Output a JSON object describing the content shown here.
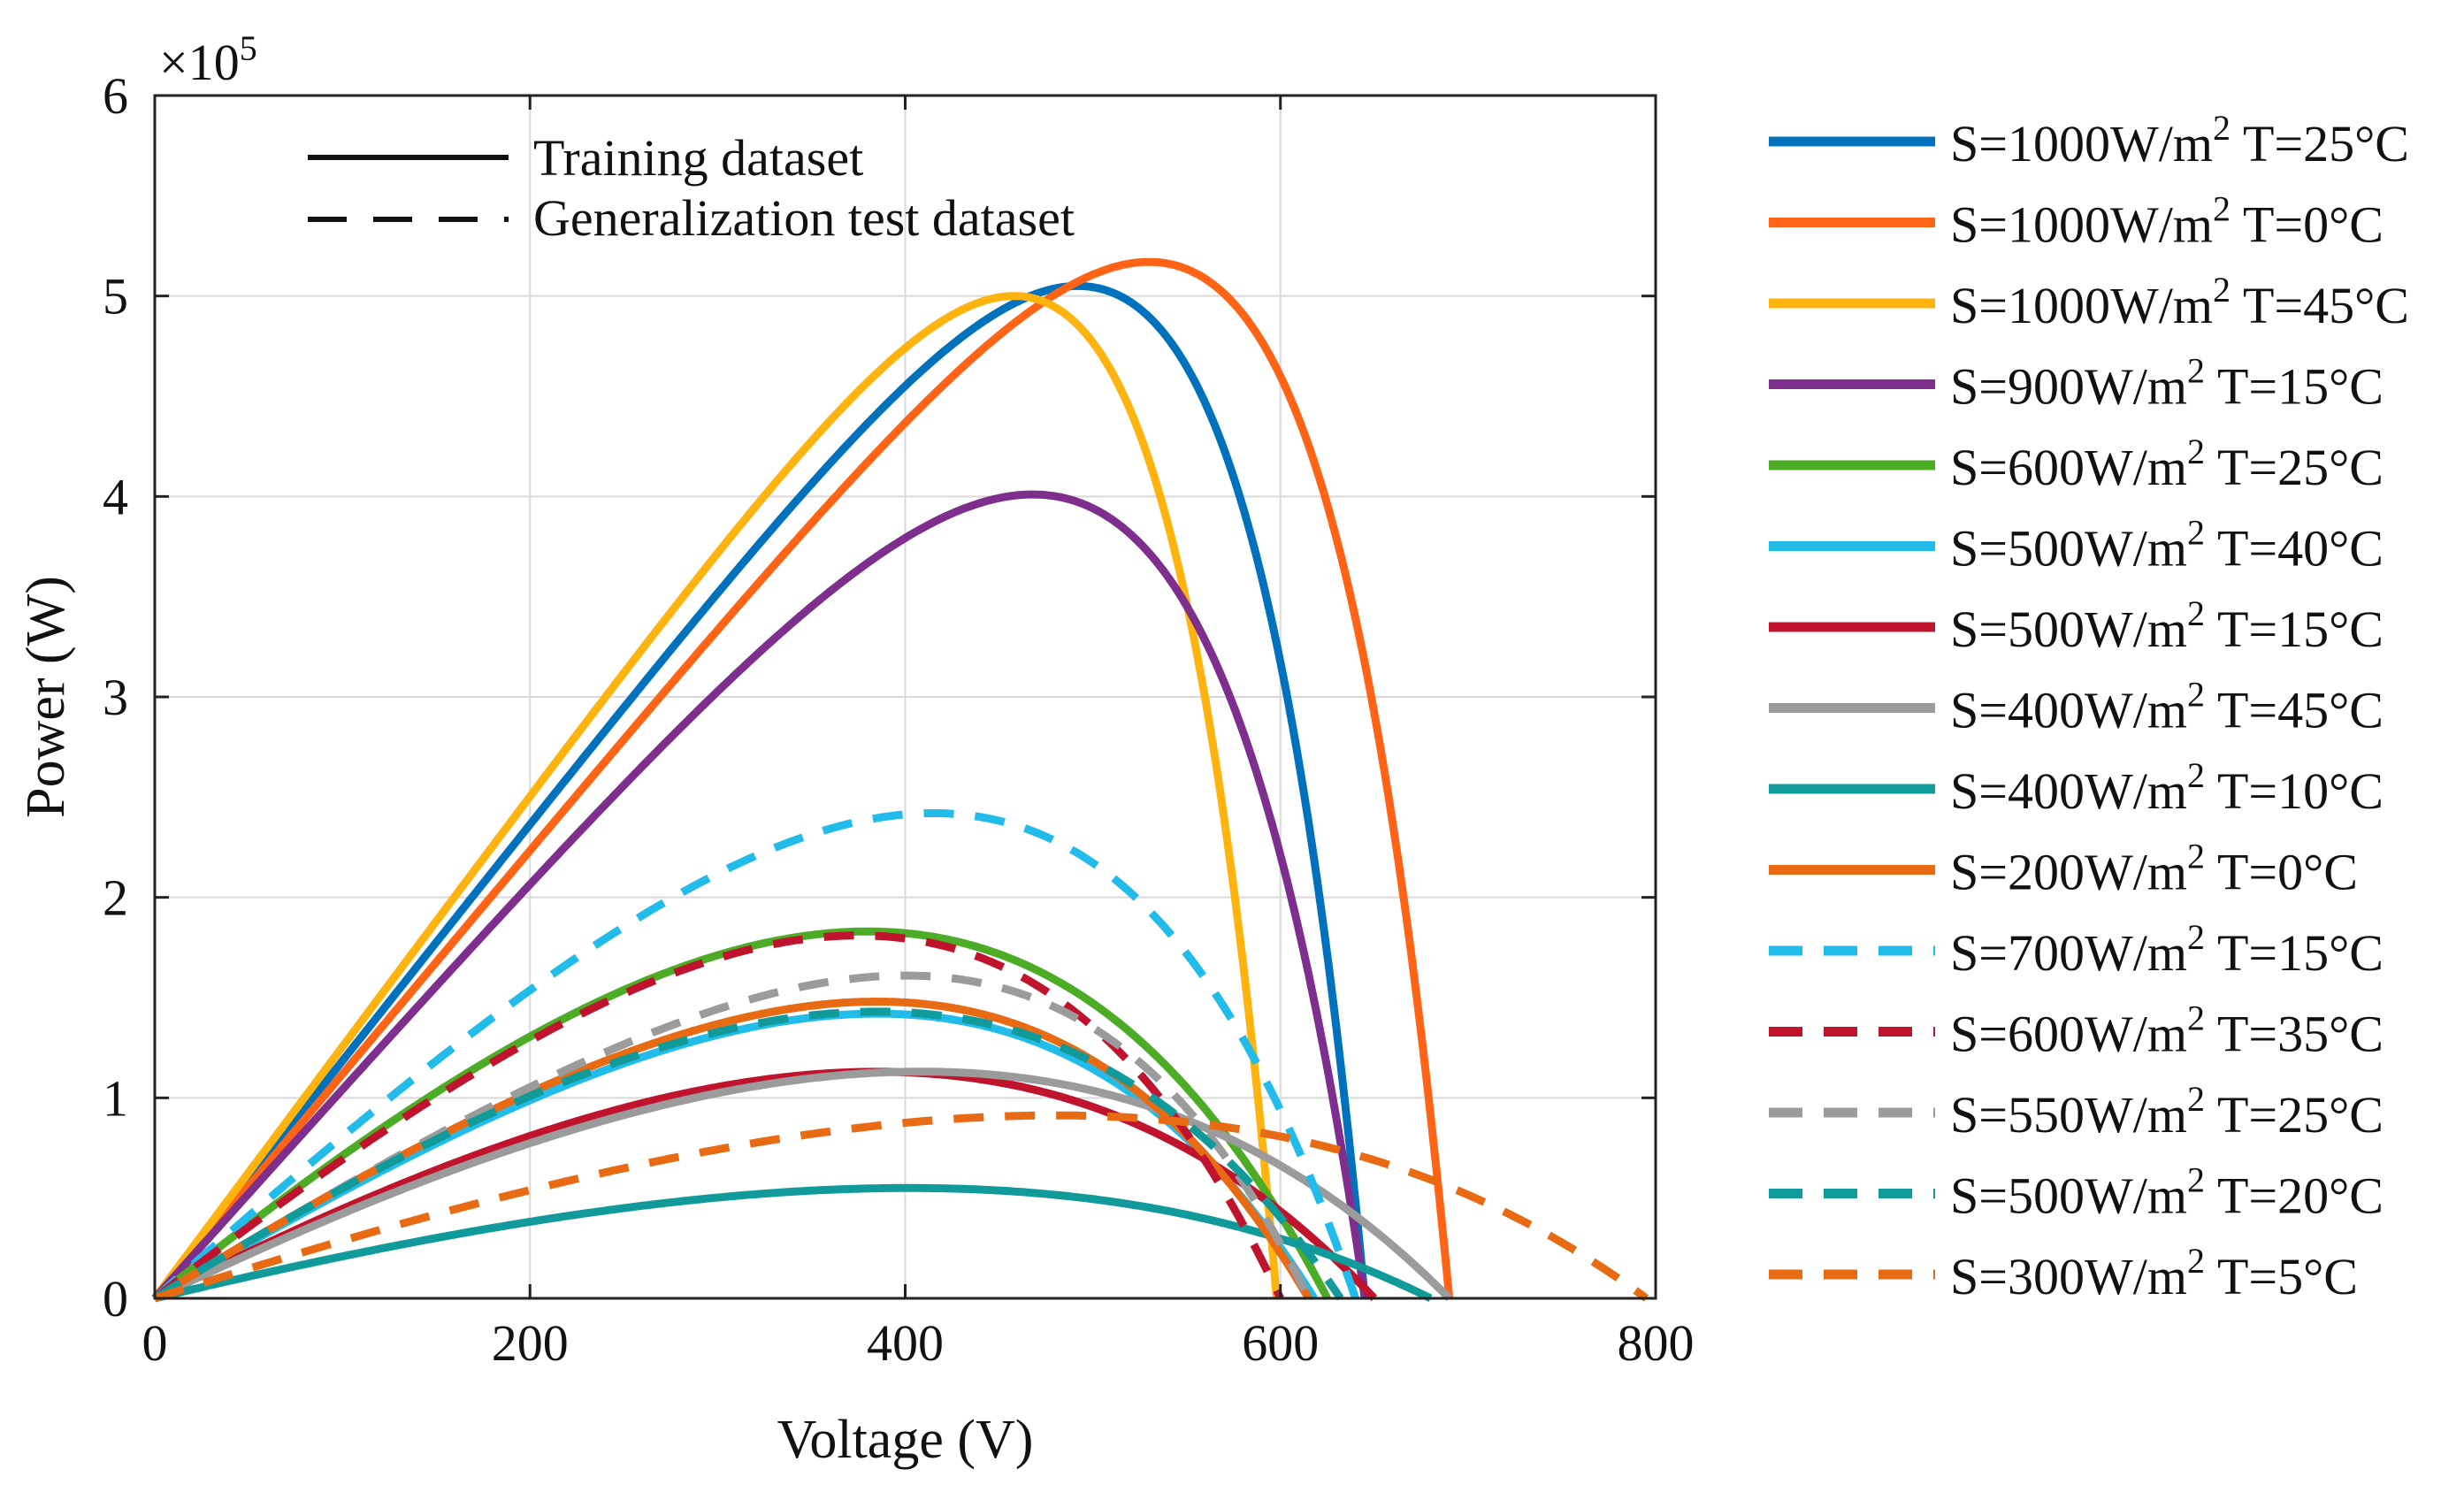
{
  "chart_data": {
    "type": "line",
    "xlabel": "Voltage (V)",
    "ylabel": "Power (W)",
    "xlim": [
      0,
      800
    ],
    "ylim": [
      0,
      6
    ],
    "y_exponent_label": "×10",
    "y_exponent_power": "5",
    "xticks": [
      "0",
      "200",
      "400",
      "600",
      "800"
    ],
    "yticks": [
      "0",
      "1",
      "2",
      "3",
      "4",
      "5",
      "6"
    ],
    "grid": true,
    "style_legend": {
      "position": "top-left",
      "items": [
        {
          "label": "Training dataset",
          "style": "solid"
        },
        {
          "label": "Generalization test dataset",
          "style": "dashed"
        }
      ]
    },
    "legend_position": "outside-right",
    "series": [
      {
        "id": "s1000_25",
        "S": "S=1000W/m",
        "T": "T=25°C",
        "sup": "2",
        "color": "#0072BD",
        "dashed": false,
        "vmax": 645,
        "vmp": 492,
        "pmax": 5.05
      },
      {
        "id": "s1000_0",
        "S": "S=1000W/m",
        "T": "T=0°C",
        "sup": "2",
        "color": "#FF6316",
        "dashed": false,
        "vmax": 690,
        "vmp": 530,
        "pmax": 5.17
      },
      {
        "id": "s1000_45",
        "S": "S=1000W/m",
        "T": "T=45°C",
        "sup": "2",
        "color": "#FFB30F",
        "dashed": false,
        "vmax": 598,
        "vmp": 458,
        "pmax": 5.0
      },
      {
        "id": "s900_15",
        "S": "S=900W/m",
        "T": "T=15°C",
        "sup": "2",
        "color": "#7E2F8E",
        "dashed": false,
        "vmax": 645,
        "vmp": 468,
        "pmax": 4.01
      },
      {
        "id": "s600_25",
        "S": "S=600W/m",
        "T": "T=25°C",
        "sup": "2",
        "color": "#4DAC26",
        "dashed": false,
        "vmax": 625,
        "vmp": 380,
        "pmax": 1.83
      },
      {
        "id": "s500_40",
        "S": "S=500W/m",
        "T": "T=40°C",
        "sup": "2",
        "color": "#22BCEB",
        "dashed": false,
        "vmax": 618,
        "vmp": 385,
        "pmax": 1.42
      },
      {
        "id": "s500_15",
        "S": "S=500W/m",
        "T": "T=15°C",
        "sup": "2",
        "color": "#C0142E",
        "dashed": false,
        "vmax": 650,
        "vmp": 385,
        "pmax": 1.13
      },
      {
        "id": "s400_45",
        "S": "S=400W/m",
        "T": "T=45°C",
        "sup": "2",
        "color": "#9B9B9B",
        "dashed": false,
        "vmax": 690,
        "vmp": 400,
        "pmax": 1.13
      },
      {
        "id": "s400_10",
        "S": "S=400W/m",
        "T": "T=10°C",
        "sup": "2",
        "color": "#119A9A",
        "dashed": false,
        "vmax": 680,
        "vmp": 395,
        "pmax": 0.55
      },
      {
        "id": "s200_0",
        "S": "S=200W/m",
        "T": "T=0°C",
        "sup": "2",
        "color": "#E86A12",
        "dashed": false,
        "vmax": 615,
        "vmp": 385,
        "pmax": 1.48
      },
      {
        "id": "s700_15",
        "S": "S=700W/m",
        "T": "T=15°C",
        "sup": "2",
        "color": "#22BCEB",
        "dashed": true,
        "vmax": 640,
        "vmp": 415,
        "pmax": 2.42
      },
      {
        "id": "s600_35",
        "S": "S=600W/m",
        "T": "T=35°C",
        "sup": "2",
        "color": "#C0142E",
        "dashed": true,
        "vmax": 600,
        "vmp": 375,
        "pmax": 1.81
      },
      {
        "id": "s550_25",
        "S": "S=550W/m",
        "T": "T=25°C",
        "sup": "2",
        "color": "#9B9B9B",
        "dashed": true,
        "vmax": 615,
        "vmp": 400,
        "pmax": 1.61
      },
      {
        "id": "s500_20",
        "S": "S=500W/m",
        "T": "T=20°C",
        "sup": "2",
        "color": "#119A9A",
        "dashed": true,
        "vmax": 632,
        "vmp": 385,
        "pmax": 1.43
      },
      {
        "id": "s300_5",
        "S": "S=300W/m",
        "T": "T=5°C",
        "sup": "2",
        "color": "#E86A12",
        "dashed": true,
        "vmax": 795,
        "vmp": 460,
        "pmax": 0.91
      }
    ]
  }
}
